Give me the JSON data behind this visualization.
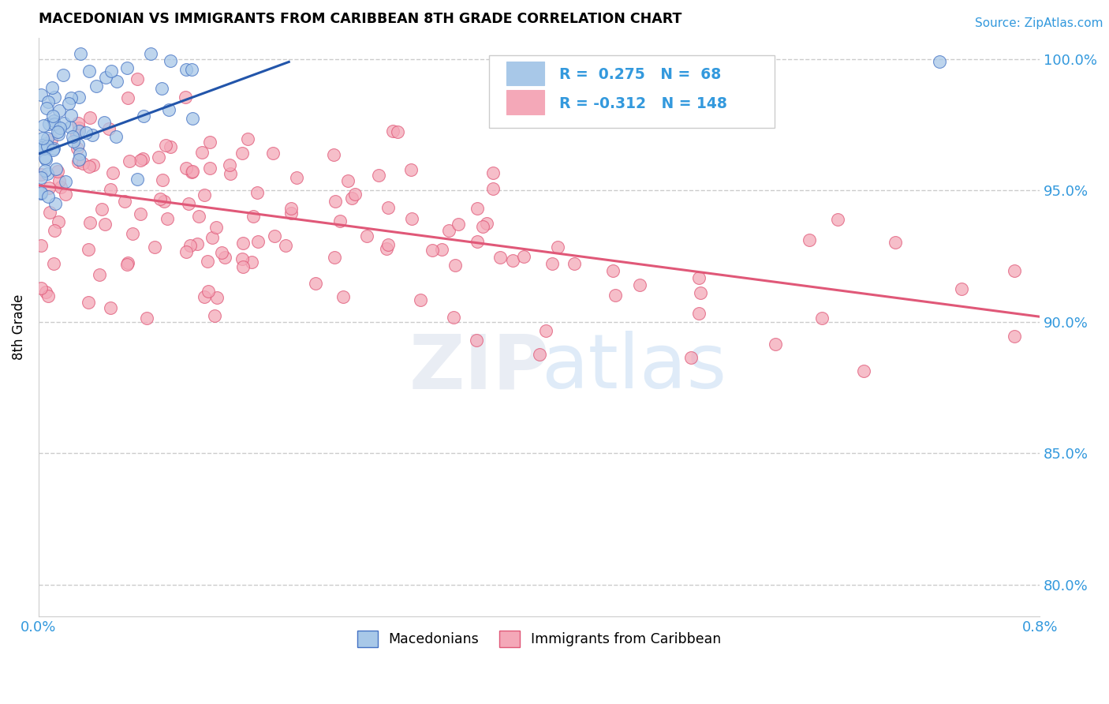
{
  "title": "MACEDONIAN VS IMMIGRANTS FROM CARIBBEAN 8TH GRADE CORRELATION CHART",
  "source": "Source: ZipAtlas.com",
  "ylabel": "8th Grade",
  "xlim": [
    0.0,
    0.008
  ],
  "ylim": [
    0.788,
    1.008
  ],
  "xtick_positions": [
    0.0,
    0.002,
    0.004,
    0.006,
    0.008
  ],
  "xtick_labels": [
    "0.0%",
    "",
    "",
    "",
    "0.8%"
  ],
  "ytick_positions": [
    0.8,
    0.85,
    0.9,
    0.95,
    1.0
  ],
  "ytick_labels_right": [
    "80.0%",
    "85.0%",
    "90.0%",
    "95.0%",
    "100.0%"
  ],
  "blue_R": 0.275,
  "blue_N": 68,
  "pink_R": -0.312,
  "pink_N": 148,
  "blue_color": "#a8c8e8",
  "pink_color": "#f4a8b8",
  "blue_edge_color": "#4472c4",
  "pink_edge_color": "#e05878",
  "blue_line_color": "#2255aa",
  "pink_line_color": "#e05878",
  "legend_label_blue": "Macedonians",
  "legend_label_pink": "Immigrants from Caribbean",
  "blue_trend_x0": 0.0,
  "blue_trend_y0": 0.964,
  "blue_trend_x1": 0.002,
  "blue_trend_y1": 0.999,
  "pink_trend_x0": 0.0,
  "pink_trend_y0": 0.952,
  "pink_trend_x1": 0.008,
  "pink_trend_y1": 0.902
}
